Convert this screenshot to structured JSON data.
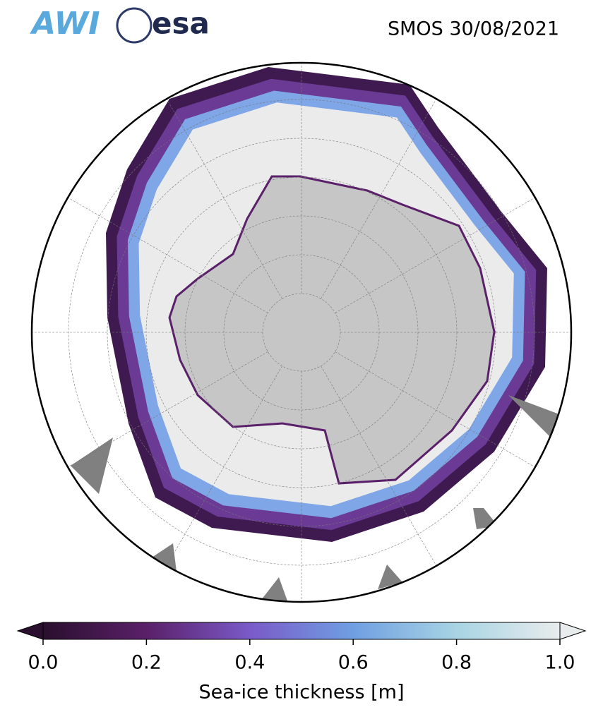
{
  "header": {
    "logos": [
      "AWI",
      "esa"
    ],
    "title": "SMOS 30/08/2021"
  },
  "colorbar": {
    "label": "Sea-ice thickness [m]",
    "range": [
      0,
      1
    ],
    "ticks": [
      {
        "value": 0,
        "label": "0.0"
      },
      {
        "value": 0.2,
        "label": "0.2"
      },
      {
        "value": 0.4,
        "label": "0.4"
      },
      {
        "value": 0.6,
        "label": "0.6"
      },
      {
        "value": 0.8,
        "label": "0.8"
      },
      {
        "value": 1,
        "label": "1.0"
      }
    ],
    "colors": [
      "#2a0f2e",
      "#5a2069",
      "#7a5ac8",
      "#6f9fe2",
      "#a8d4e4",
      "#e8ecec"
    ]
  }
}
